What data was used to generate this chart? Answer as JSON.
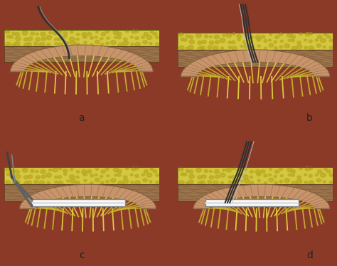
{
  "fig_width": 4.74,
  "fig_height": 3.74,
  "dpi": 100,
  "bg_color": "#8B3A28",
  "panel_bg": "#F5F0EC",
  "divider_thickness": 0.055,
  "fat_yellow": "#D4C840",
  "fat_dot": "#B8A820",
  "muscle_tan": "#A07850",
  "muscle_line": "#806040",
  "bowel_peach": "#C8956A",
  "bowel_light": "#E8D0B8",
  "villi_yellow": "#C8B830",
  "villi_bright": "#E8D840",
  "white_bg": "#FFFFFF",
  "tube_gray": "#909090",
  "wire_dark": "#404040",
  "wire_mid": "#707070",
  "labels": [
    "a",
    "b",
    "c",
    "d"
  ],
  "label_fs": 10
}
